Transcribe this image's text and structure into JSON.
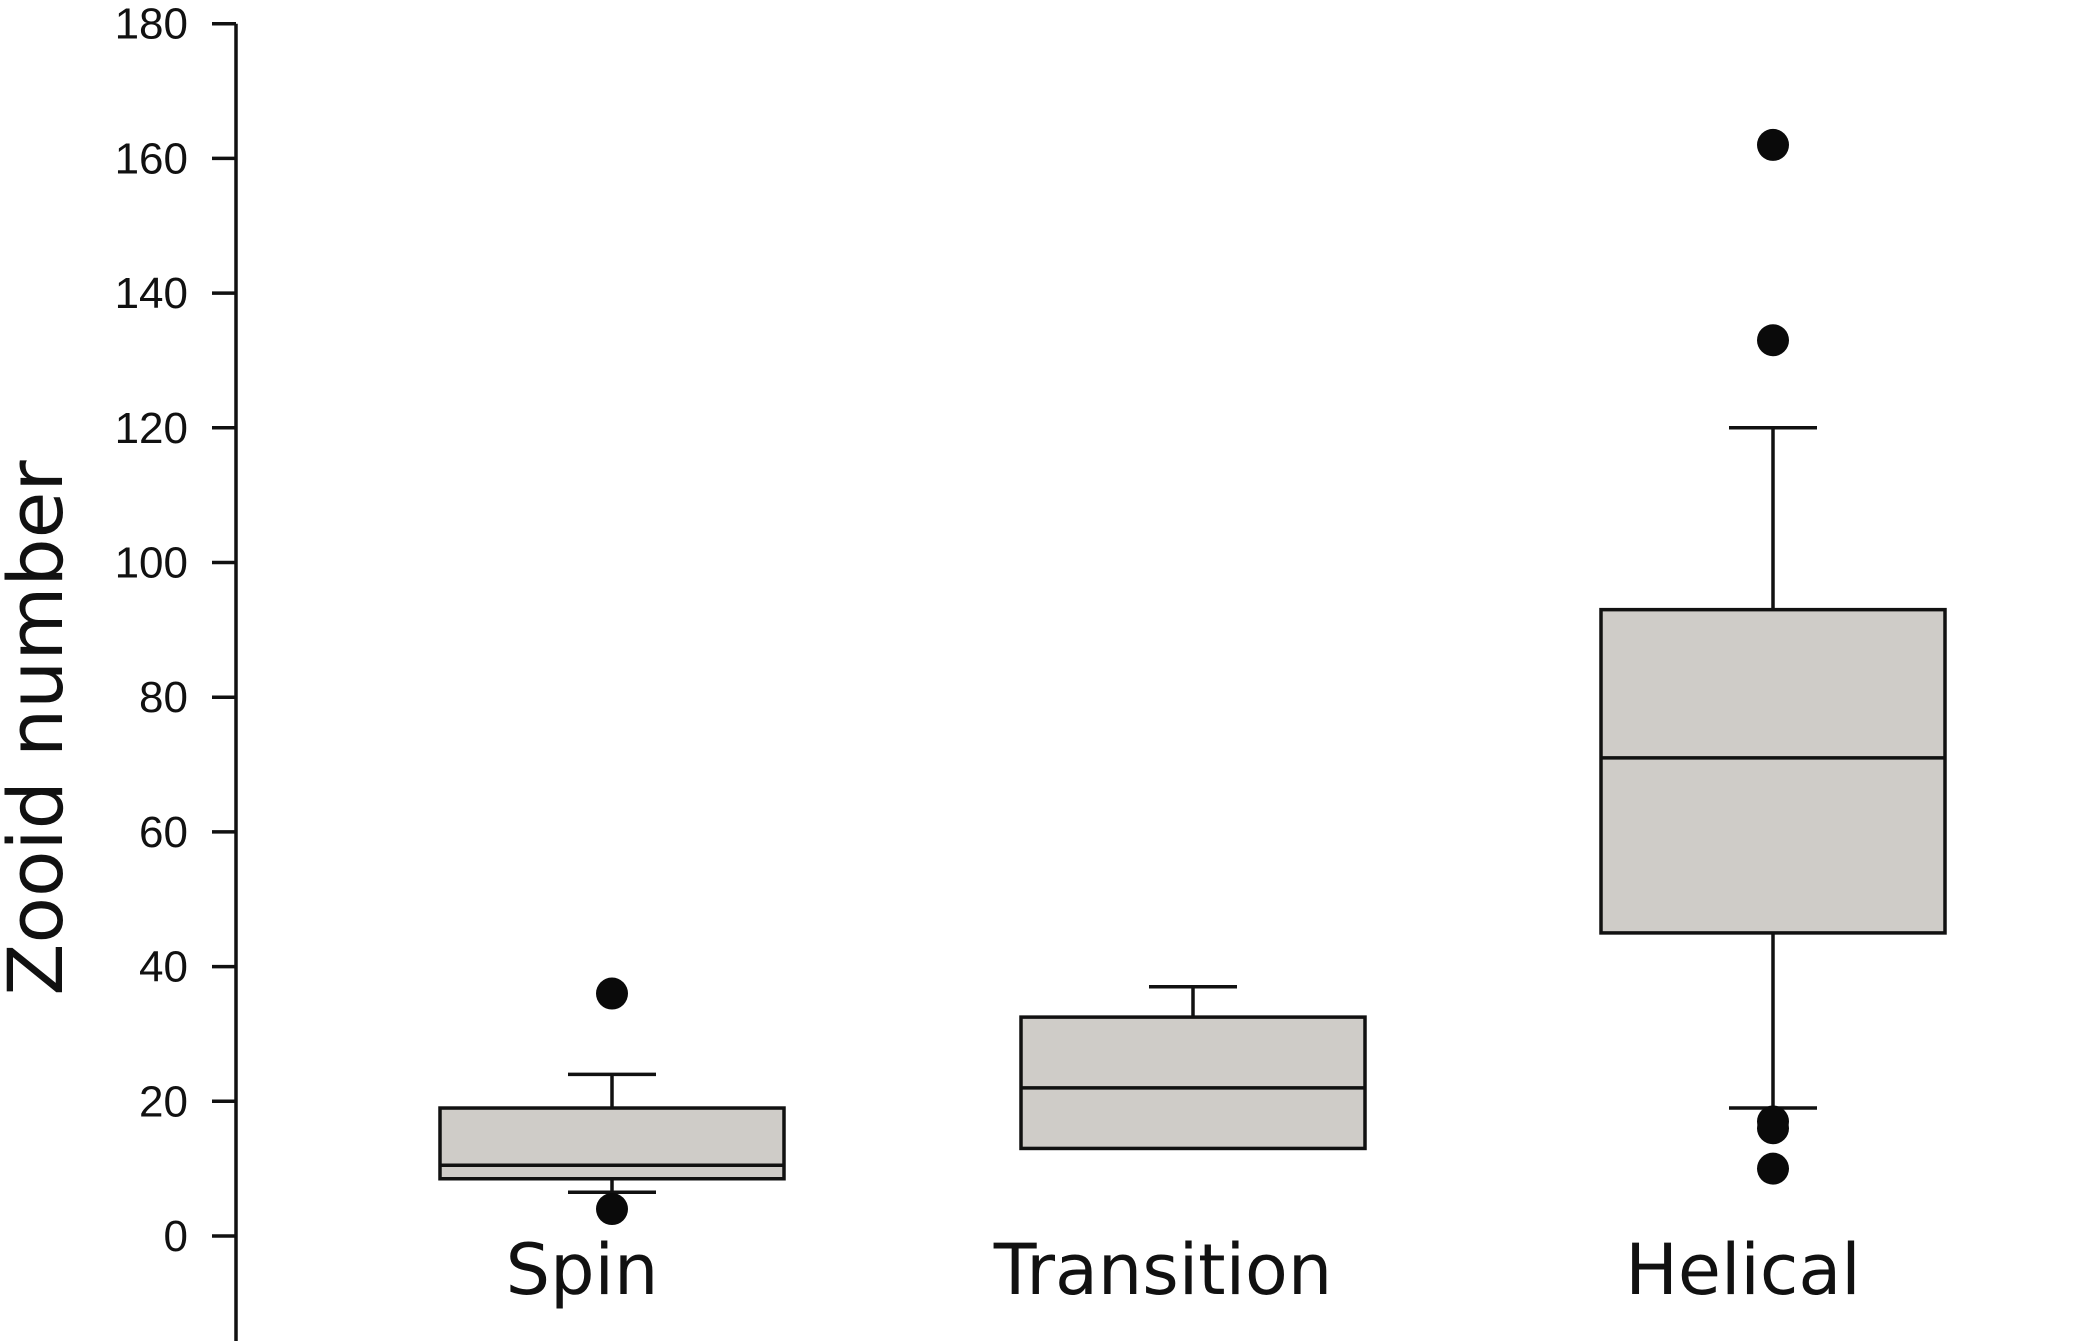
{
  "chart_data": {
    "type": "box",
    "ylabel": "Zooid number",
    "xlabel": "",
    "ylim": [
      -17,
      180
    ],
    "yticks": [
      0,
      20,
      40,
      60,
      80,
      100,
      120,
      140,
      160,
      180
    ],
    "grid": false,
    "box_fill": "#cfccc8",
    "categories": [
      "Spin",
      "Transition",
      "Helical"
    ],
    "boxes": [
      {
        "label": "Spin",
        "whisker_low": 6.5,
        "q1": 8.5,
        "median": 10.5,
        "q3": 19,
        "whisker_high": 24,
        "outliers": [
          36,
          4
        ]
      },
      {
        "label": "Transition",
        "whisker_low": 13,
        "q1": 13,
        "median": 22,
        "q3": 32.5,
        "whisker_high": 37,
        "outliers": []
      },
      {
        "label": "Helical",
        "whisker_low": 19,
        "q1": 45,
        "median": 71,
        "q3": 93,
        "whisker_high": 120,
        "outliers": [
          162,
          133,
          17,
          16,
          10
        ]
      }
    ]
  }
}
